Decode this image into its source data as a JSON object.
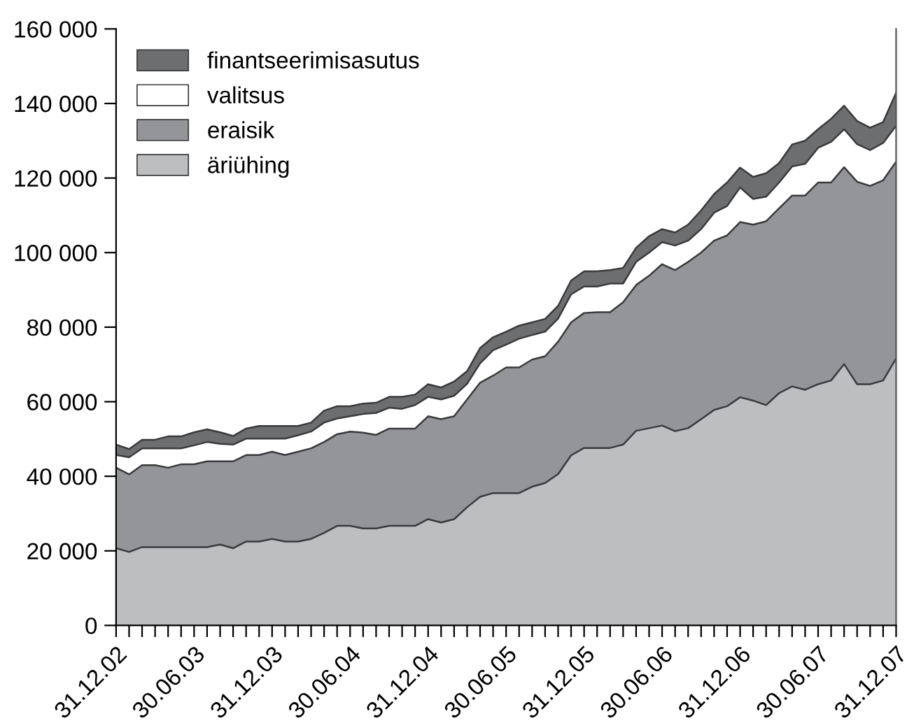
{
  "chart_data": {
    "type": "area",
    "stacked": true,
    "categories": [
      "31.12.02",
      null,
      null,
      null,
      null,
      null,
      "30.06.03",
      null,
      null,
      null,
      null,
      null,
      "31.12.03",
      null,
      null,
      null,
      null,
      null,
      "30.06.04",
      null,
      null,
      null,
      null,
      null,
      "31.12.04",
      null,
      null,
      null,
      null,
      null,
      "30.06.05",
      null,
      null,
      null,
      null,
      null,
      "31.12.05",
      null,
      null,
      null,
      null,
      null,
      "30.06.06",
      null,
      null,
      null,
      null,
      null,
      "31.12.06",
      null,
      null,
      null,
      null,
      null,
      "30.06.07",
      null,
      null,
      null,
      null,
      null,
      "31.12.07"
    ],
    "ylim": [
      0,
      160000
    ],
    "yticks": [
      0,
      {
        "value": 20000,
        "label": "20 000"
      },
      {
        "value": 40000,
        "label": "40 000"
      },
      {
        "value": 60000,
        "label": "60 000"
      },
      {
        "value": 80000,
        "label": "80 000"
      },
      {
        "value": 100000,
        "label": "100 000"
      },
      {
        "value": 120000,
        "label": "120 000"
      },
      {
        "value": 140000,
        "label": "140 000"
      },
      {
        "value": 160000,
        "label": "160 000"
      }
    ],
    "grid": false,
    "legend": "top left",
    "series": [
      {
        "name": "äriühing",
        "color": "#bdbec0",
        "values": [
          20700,
          19700,
          21000,
          21000,
          21000,
          21000,
          21000,
          21000,
          21700,
          20700,
          22500,
          22500,
          23200,
          22500,
          22500,
          23200,
          24800,
          26700,
          26700,
          26000,
          26000,
          26700,
          26700,
          26700,
          28500,
          27600,
          28500,
          31700,
          34500,
          35500,
          35500,
          35500,
          37200,
          38200,
          40600,
          45600,
          47600,
          47600,
          47600,
          48500,
          52200,
          52900,
          53600,
          52100,
          52900,
          55300,
          57800,
          58800,
          61200,
          60300,
          59100,
          62300,
          64100,
          63200,
          64700,
          65700,
          70100,
          64700,
          64700,
          65700,
          71600
        ]
      },
      {
        "name": "eraisik",
        "color": "#939598",
        "values": [
          21600,
          20800,
          22000,
          22000,
          21300,
          22200,
          22200,
          23000,
          22300,
          23300,
          23200,
          23200,
          23400,
          23200,
          24100,
          24300,
          24400,
          24600,
          25300,
          25700,
          25100,
          26100,
          26100,
          26100,
          27600,
          27700,
          27600,
          28900,
          30600,
          31500,
          33700,
          33700,
          34100,
          34000,
          35500,
          35700,
          36200,
          36400,
          36400,
          38200,
          39100,
          40900,
          43300,
          43200,
          44600,
          44700,
          45400,
          45800,
          47000,
          47200,
          49300,
          49600,
          51200,
          52100,
          54100,
          53100,
          52800,
          54300,
          53200,
          53700,
          52800
        ]
      },
      {
        "name": "valitsus",
        "color": "#ffffff",
        "values": [
          3400,
          4600,
          4500,
          4500,
          5200,
          4300,
          5100,
          5200,
          4700,
          4500,
          4400,
          4400,
          3500,
          4400,
          4400,
          4500,
          5200,
          4200,
          4100,
          5000,
          5900,
          5600,
          5300,
          6300,
          5200,
          5300,
          5500,
          4200,
          5200,
          6800,
          6100,
          7700,
          6600,
          6600,
          6200,
          7500,
          7100,
          6900,
          7700,
          5000,
          6200,
          6200,
          5900,
          6600,
          5700,
          6300,
          7500,
          7900,
          9300,
          6900,
          6600,
          6900,
          7800,
          8500,
          9300,
          10900,
          10200,
          10100,
          9600,
          10000,
          9600
        ]
      },
      {
        "name": "finantseerimisasutus",
        "color": "#6d6e70",
        "values": [
          2800,
          2200,
          2300,
          2300,
          3200,
          3200,
          3500,
          3400,
          3100,
          2300,
          2700,
          3400,
          3400,
          3400,
          2500,
          2400,
          3200,
          3300,
          2700,
          2800,
          2700,
          2900,
          3200,
          2800,
          3400,
          3200,
          3800,
          3400,
          4100,
          3500,
          3500,
          3500,
          3400,
          3400,
          3400,
          3700,
          4100,
          4100,
          3600,
          4200,
          3800,
          4400,
          3500,
          3500,
          4300,
          5000,
          5000,
          6300,
          5300,
          5900,
          6300,
          5200,
          5900,
          6200,
          5000,
          6200,
          6300,
          6200,
          6000,
          5600,
          8900
        ]
      }
    ]
  }
}
